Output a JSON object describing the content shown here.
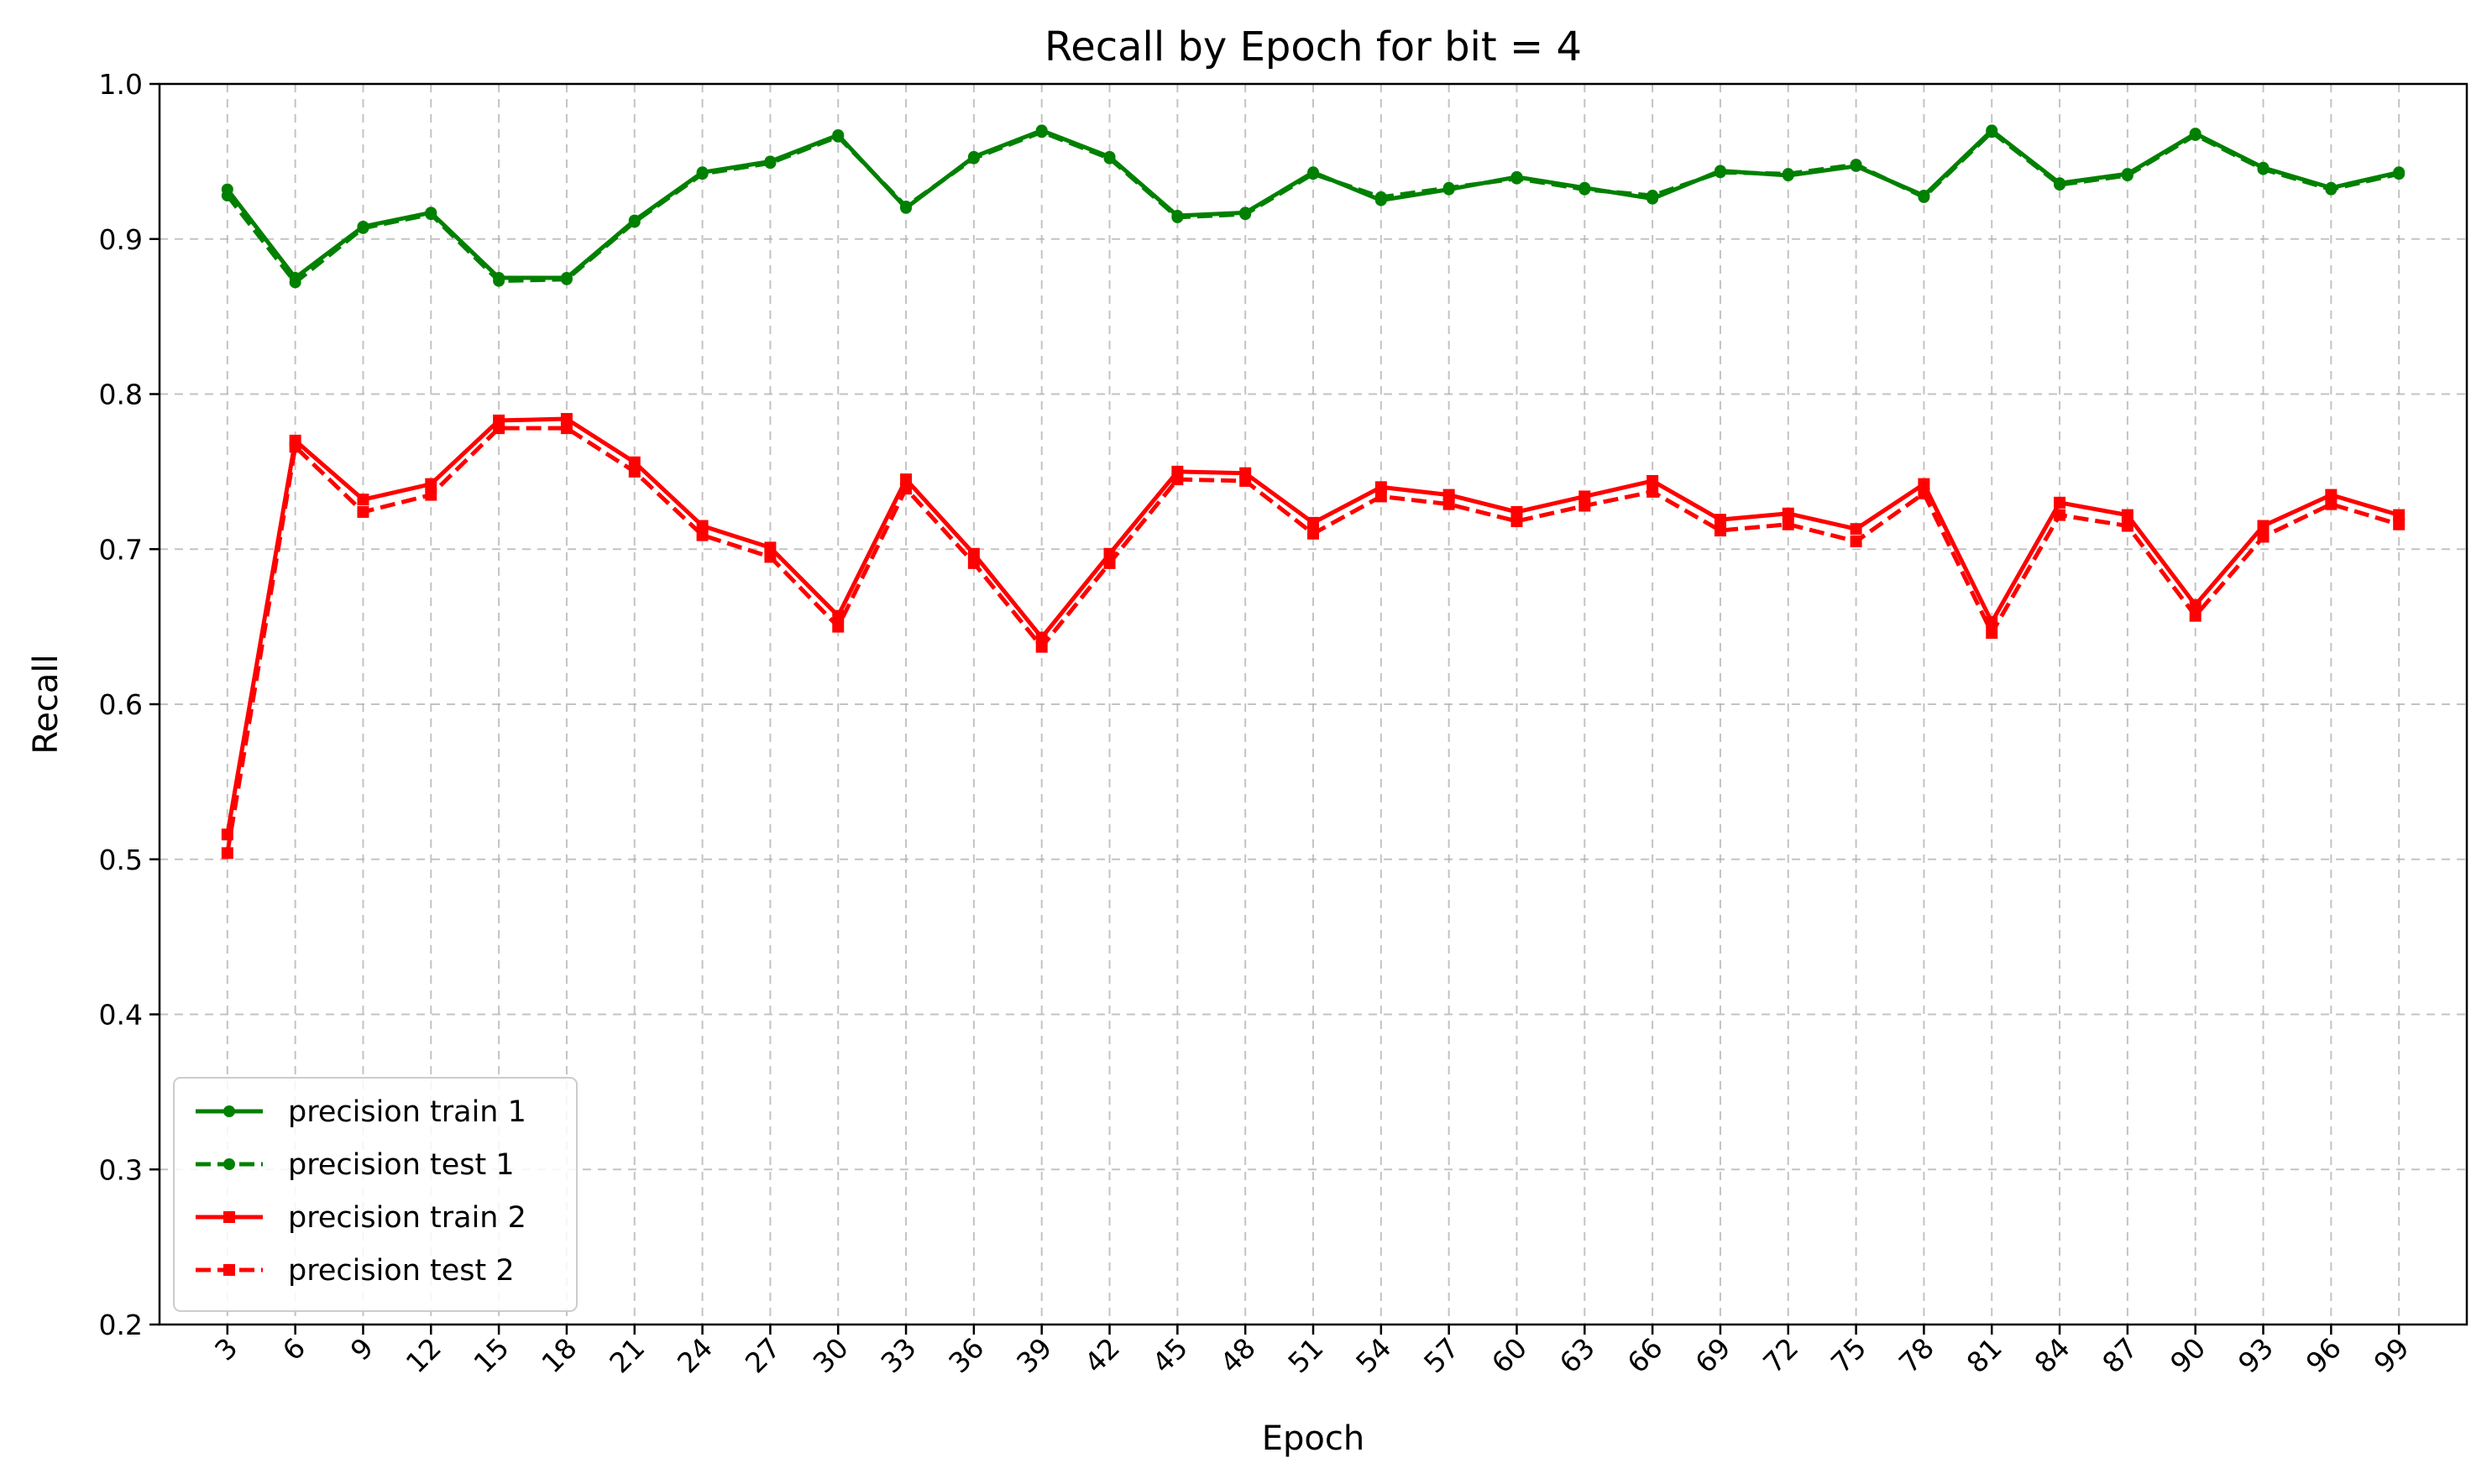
{
  "chart_data": {
    "type": "line",
    "title": "Recall by Epoch for bit = 4",
    "xlabel": "Epoch",
    "ylabel": "Recall",
    "ylim": [
      0.2,
      1.0
    ],
    "xlim": [
      0,
      102
    ],
    "yticks": [
      "0.2",
      "0.3",
      "0.4",
      "0.5",
      "0.6",
      "0.7",
      "0.8",
      "0.9",
      "1.0"
    ],
    "grid": true,
    "legend_position": "lower-left",
    "x": [
      3,
      6,
      9,
      12,
      15,
      18,
      21,
      24,
      27,
      30,
      33,
      36,
      39,
      42,
      45,
      48,
      51,
      54,
      57,
      60,
      63,
      66,
      69,
      72,
      75,
      78,
      81,
      84,
      87,
      90,
      93,
      96,
      99
    ],
    "xtick_labels": [
      "3",
      "6",
      "9",
      "12",
      "15",
      "18",
      "21",
      "24",
      "27",
      "30",
      "33",
      "36",
      "39",
      "42",
      "45",
      "48",
      "51",
      "54",
      "57",
      "60",
      "63",
      "66",
      "69",
      "72",
      "75",
      "78",
      "81",
      "84",
      "87",
      "90",
      "93",
      "96",
      "99"
    ],
    "series": [
      {
        "name": "precision train 1",
        "color": "#008000",
        "line_style": "solid",
        "marker": "circle",
        "values": [
          0.932,
          0.875,
          0.908,
          0.917,
          0.875,
          0.875,
          0.912,
          0.943,
          0.95,
          0.967,
          0.92,
          0.953,
          0.97,
          0.953,
          0.915,
          0.917,
          0.943,
          0.925,
          0.932,
          0.94,
          0.933,
          0.926,
          0.944,
          0.941,
          0.947,
          0.928,
          0.97,
          0.936,
          0.942,
          0.968,
          0.946,
          0.933,
          0.943
        ]
      },
      {
        "name": "precision test 1",
        "color": "#008000",
        "line_style": "dashed",
        "marker": "circle",
        "values": [
          0.928,
          0.872,
          0.907,
          0.916,
          0.873,
          0.874,
          0.911,
          0.942,
          0.949,
          0.966,
          0.921,
          0.952,
          0.969,
          0.952,
          0.914,
          0.916,
          0.942,
          0.927,
          0.933,
          0.939,
          0.932,
          0.928,
          0.943,
          0.942,
          0.948,
          0.927,
          0.969,
          0.935,
          0.941,
          0.967,
          0.945,
          0.932,
          0.942
        ]
      },
      {
        "name": "precision train 2",
        "color": "#ff0000",
        "line_style": "solid",
        "marker": "square",
        "values": [
          0.516,
          0.77,
          0.732,
          0.742,
          0.783,
          0.784,
          0.756,
          0.715,
          0.701,
          0.657,
          0.745,
          0.697,
          0.643,
          0.697,
          0.75,
          0.749,
          0.717,
          0.74,
          0.735,
          0.724,
          0.734,
          0.744,
          0.719,
          0.723,
          0.713,
          0.742,
          0.653,
          0.73,
          0.722,
          0.664,
          0.715,
          0.735,
          0.722
        ]
      },
      {
        "name": "precision test 2",
        "color": "#ff0000",
        "line_style": "dashed",
        "marker": "square",
        "values": [
          0.504,
          0.766,
          0.724,
          0.735,
          0.778,
          0.778,
          0.75,
          0.709,
          0.695,
          0.65,
          0.739,
          0.691,
          0.637,
          0.691,
          0.745,
          0.744,
          0.71,
          0.734,
          0.729,
          0.718,
          0.728,
          0.737,
          0.712,
          0.716,
          0.705,
          0.736,
          0.646,
          0.722,
          0.715,
          0.657,
          0.708,
          0.729,
          0.716
        ]
      }
    ]
  }
}
